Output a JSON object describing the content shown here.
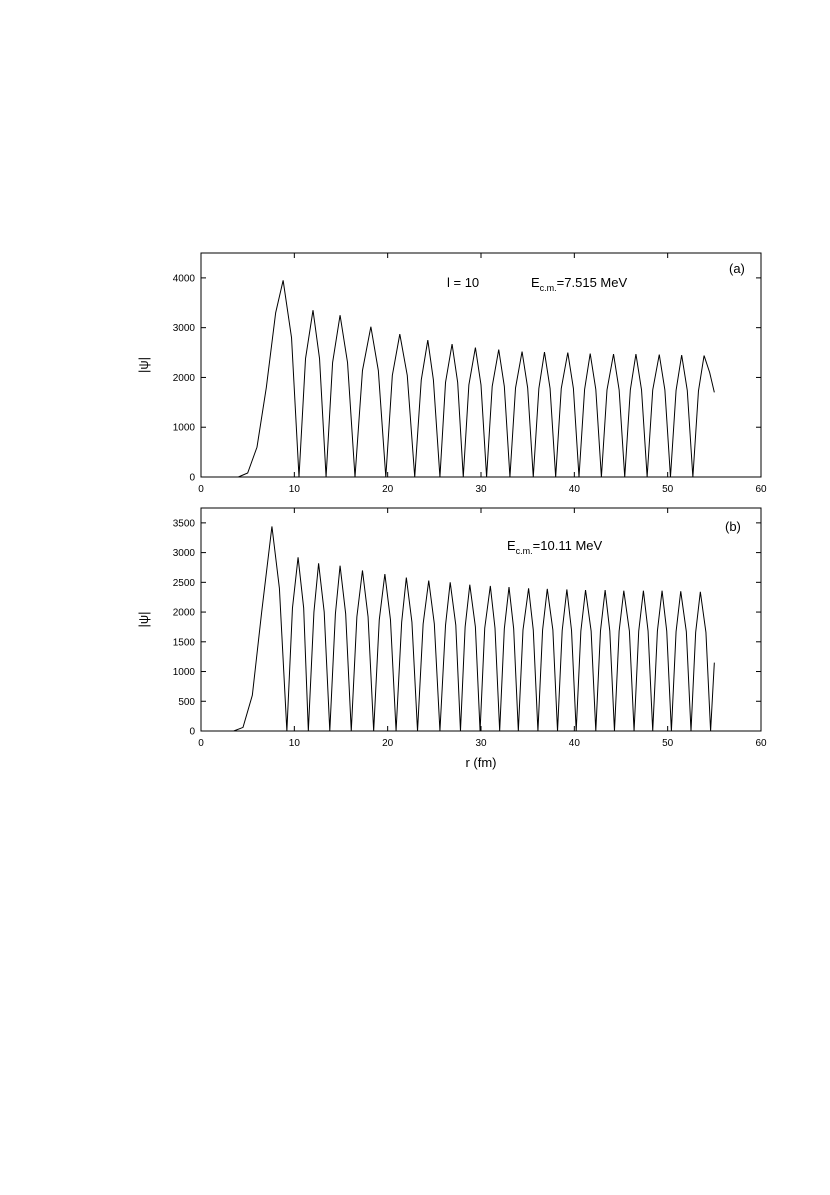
{
  "chart_data": [
    {
      "type": "line",
      "ylabel": "|ψ|",
      "annotations": [
        {
          "text": "l = 10"
        },
        {
          "main": "E",
          "sub": "c.m.",
          "rest": "=7.515 MeV"
        },
        {
          "text": "(a)"
        }
      ],
      "color": "#000000",
      "x": [
        4.0,
        5.0,
        6.0,
        7.0,
        8.0,
        8.8,
        9.7,
        10.5,
        11.2,
        12.0,
        12.7,
        13.4,
        14.1,
        14.9,
        15.7,
        16.5,
        17.3,
        18.2,
        19.0,
        19.8,
        20.5,
        21.3,
        22.1,
        22.9,
        23.6,
        24.3,
        24.9,
        25.6,
        26.2,
        26.9,
        27.5,
        28.1,
        28.7,
        29.4,
        30.0,
        30.6,
        31.2,
        31.9,
        32.5,
        33.1,
        33.7,
        34.4,
        35.0,
        35.6,
        36.2,
        36.8,
        37.4,
        38.0,
        38.6,
        39.3,
        39.9,
        40.5,
        41.1,
        41.7,
        42.3,
        42.9,
        43.5,
        44.2,
        44.8,
        45.4,
        46.0,
        46.6,
        47.2,
        47.8,
        48.4,
        49.1,
        49.7,
        50.3,
        50.9,
        51.5,
        52.1,
        52.7,
        53.3,
        53.9,
        54.5,
        55.0
      ],
      "values": [
        0,
        80,
        600,
        1800,
        3300,
        3950,
        2800,
        0,
        2380,
        3350,
        2380,
        0,
        2300,
        3250,
        2300,
        0,
        2140,
        3020,
        2140,
        0,
        2040,
        2870,
        2040,
        0,
        1950,
        2750,
        1950,
        0,
        1900,
        2670,
        1900,
        0,
        1850,
        2600,
        1850,
        0,
        1820,
        2560,
        1820,
        0,
        1790,
        2520,
        1790,
        0,
        1780,
        2510,
        1780,
        0,
        1780,
        2500,
        1780,
        0,
        1760,
        2480,
        1760,
        0,
        1750,
        2470,
        1750,
        0,
        1750,
        2470,
        1750,
        0,
        1750,
        2460,
        1750,
        0,
        1740,
        2450,
        1740,
        0,
        1730,
        2440,
        2100,
        1700
      ],
      "xlim": [
        0,
        60
      ],
      "xticks": [
        0,
        10,
        20,
        30,
        40,
        50,
        60
      ],
      "ylim": [
        0,
        4500
      ],
      "yticks": [
        0,
        1000,
        2000,
        3000,
        4000
      ]
    },
    {
      "type": "line",
      "xlabel": "r (fm)",
      "ylabel": "|ψ|",
      "annotations": [
        {
          "main": "E",
          "sub": "c.m.",
          "rest": "=10.11 MeV"
        },
        {
          "text": "(b)"
        }
      ],
      "color": "#000000",
      "x": [
        3.5,
        4.5,
        5.5,
        6.5,
        7.6,
        8.4,
        9.2,
        9.8,
        10.4,
        11.0,
        11.5,
        12.1,
        12.6,
        13.2,
        13.8,
        14.4,
        14.9,
        15.5,
        16.1,
        16.7,
        17.3,
        17.9,
        18.5,
        19.1,
        19.7,
        20.3,
        20.9,
        21.5,
        22.0,
        22.6,
        23.2,
        23.8,
        24.4,
        25.0,
        25.6,
        26.2,
        26.7,
        27.3,
        27.8,
        28.3,
        28.8,
        29.4,
        29.9,
        30.4,
        31.0,
        31.5,
        32.0,
        32.5,
        33.0,
        33.5,
        34.0,
        34.5,
        35.1,
        35.6,
        36.1,
        36.6,
        37.1,
        37.7,
        38.2,
        38.7,
        39.2,
        39.7,
        40.2,
        40.7,
        41.2,
        41.8,
        42.3,
        42.8,
        43.3,
        43.8,
        44.3,
        44.8,
        45.3,
        45.9,
        46.4,
        46.9,
        47.4,
        47.9,
        48.4,
        48.9,
        49.4,
        49.9,
        50.4,
        50.9,
        51.4,
        52.0,
        52.5,
        53.0,
        53.5,
        54.1,
        54.6,
        55.0
      ],
      "values": [
        0,
        60,
        600,
        2000,
        3440,
        2400,
        0,
        2070,
        2920,
        2070,
        0,
        2000,
        2820,
        2000,
        0,
        1970,
        2780,
        1970,
        0,
        1920,
        2700,
        1920,
        0,
        1870,
        2640,
        1870,
        0,
        1830,
        2580,
        1830,
        0,
        1800,
        2530,
        1800,
        0,
        1780,
        2500,
        1780,
        0,
        1750,
        2460,
        1750,
        0,
        1730,
        2440,
        1730,
        0,
        1720,
        2420,
        1720,
        0,
        1700,
        2400,
        1700,
        0,
        1700,
        2390,
        1700,
        0,
        1690,
        2380,
        1690,
        0,
        1680,
        2370,
        1680,
        0,
        1680,
        2370,
        1680,
        0,
        1680,
        2360,
        1680,
        0,
        1680,
        2360,
        1680,
        0,
        1680,
        2360,
        1680,
        0,
        1670,
        2350,
        1670,
        0,
        1660,
        2340,
        1660,
        0,
        1150
      ],
      "xlim": [
        0,
        60
      ],
      "xticks": [
        0,
        10,
        20,
        30,
        40,
        50,
        60
      ],
      "ylim": [
        0,
        3750
      ],
      "yticks": [
        0,
        500,
        1000,
        1500,
        2000,
        2500,
        3000,
        3500
      ]
    }
  ]
}
